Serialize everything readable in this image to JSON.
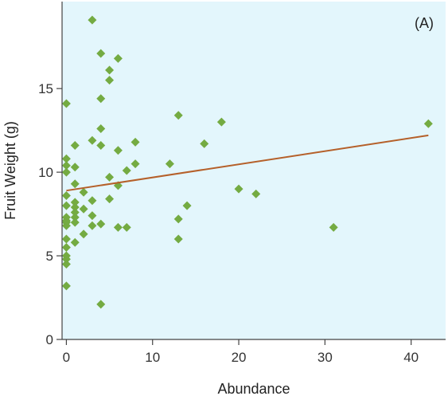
{
  "chart_data": {
    "type": "scatter",
    "panel_label": "(A)",
    "xlabel": "Abundance",
    "ylabel": "Fruit Weight (g)",
    "xlim": [
      -0.5,
      44
    ],
    "ylim": [
      0,
      20.2
    ],
    "xticks": [
      0,
      10,
      20,
      30,
      40
    ],
    "yticks": [
      0,
      5,
      10,
      15
    ],
    "grid": false,
    "legend": "none",
    "colors": {
      "plot_background": "#e3f6fc",
      "points": "#74ab42",
      "trend_line": "#b5602a",
      "axis": "#444444"
    },
    "series": [
      {
        "x": [
          0,
          0,
          0,
          0,
          0,
          0,
          0,
          0,
          0,
          0,
          0,
          0,
          0,
          0,
          0,
          0,
          1,
          1,
          1,
          1,
          1,
          1,
          1,
          1,
          1,
          2,
          2,
          2,
          3,
          3,
          3,
          3,
          3,
          4,
          4,
          4,
          4,
          4,
          4,
          5,
          5,
          5,
          5,
          6,
          6,
          6,
          6,
          7,
          7,
          8,
          8,
          12,
          13,
          13,
          13,
          14,
          16,
          18,
          20,
          22,
          31,
          42
        ],
        "y": [
          14.1,
          10.8,
          10.4,
          10.0,
          8.6,
          8.0,
          7.3,
          7.0,
          6.8,
          6.0,
          5.5,
          5.0,
          4.8,
          4.5,
          3.2,
          7.1,
          11.6,
          10.3,
          9.3,
          8.2,
          7.9,
          7.6,
          7.3,
          7.0,
          5.8,
          8.8,
          7.8,
          6.3,
          19.1,
          11.9,
          8.3,
          7.4,
          6.8,
          17.1,
          14.4,
          12.6,
          11.6,
          6.9,
          2.1,
          16.1,
          15.5,
          9.7,
          8.4,
          16.8,
          11.3,
          9.2,
          6.7,
          10.1,
          6.7,
          11.8,
          10.5,
          10.5,
          13.4,
          7.2,
          6.0,
          8.0,
          11.7,
          13.0,
          9.0,
          8.7,
          6.7,
          12.9
        ]
      }
    ],
    "trend_line": {
      "x": [
        0,
        42
      ],
      "y": [
        8.9,
        12.2
      ]
    }
  }
}
